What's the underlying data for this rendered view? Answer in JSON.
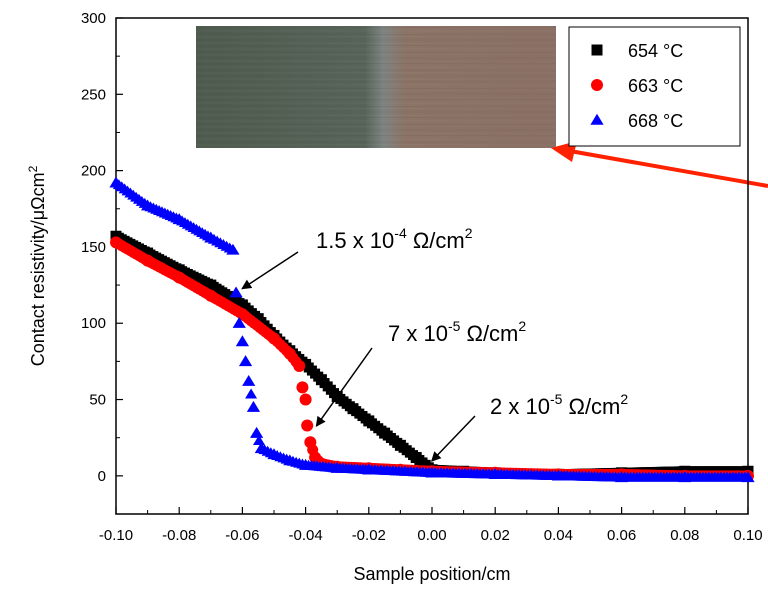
{
  "chart_data": {
    "type": "scatter",
    "title": "",
    "xlabel": "Sample position/cm",
    "ylabel": "Contact resistivity/μΩcm",
    "ylabel_sup": "2",
    "xlim": [
      -0.1,
      0.1
    ],
    "ylim": [
      -25,
      300
    ],
    "x_ticks": [
      -0.1,
      -0.08,
      -0.06,
      -0.04,
      -0.02,
      0.0,
      0.02,
      0.04,
      0.06,
      0.08,
      0.1
    ],
    "x_tick_labels": [
      "-0.10",
      "-0.08",
      "-0.06",
      "-0.04",
      "-0.02",
      "0.00",
      "0.02",
      "0.04",
      "0.06",
      "0.08",
      "0.10"
    ],
    "y_ticks": [
      0,
      50,
      100,
      150,
      200,
      250,
      300
    ],
    "y_tick_labels": [
      "0",
      "50",
      "100",
      "150",
      "200",
      "250",
      "300"
    ],
    "grid": false,
    "legend_position": "top-right",
    "series": [
      {
        "name": "654 °C",
        "marker": "square",
        "color": "#000000",
        "points": [
          [
            -0.1,
            157
          ],
          [
            -0.09,
            146
          ],
          [
            -0.08,
            135
          ],
          [
            -0.07,
            125
          ],
          [
            -0.06,
            112
          ],
          [
            -0.055,
            103
          ],
          [
            -0.05,
            92
          ],
          [
            -0.045,
            82
          ],
          [
            -0.04,
            73
          ],
          [
            -0.035,
            63
          ],
          [
            -0.03,
            52
          ],
          [
            -0.025,
            44
          ],
          [
            -0.02,
            36
          ],
          [
            -0.015,
            28
          ],
          [
            -0.01,
            20
          ],
          [
            -0.005,
            12
          ],
          [
            0.0,
            4
          ],
          [
            0.01,
            3
          ],
          [
            0.02,
            2
          ],
          [
            0.04,
            1
          ],
          [
            0.06,
            2
          ],
          [
            0.08,
            3
          ],
          [
            0.1,
            3
          ]
        ]
      },
      {
        "name": "663 °C",
        "marker": "circle",
        "color": "#ff0000",
        "points": [
          [
            -0.1,
            153
          ],
          [
            -0.09,
            141
          ],
          [
            -0.08,
            130
          ],
          [
            -0.07,
            118
          ],
          [
            -0.06,
            106
          ],
          [
            -0.05,
            90
          ],
          [
            -0.045,
            80
          ],
          [
            -0.042,
            72
          ],
          [
            -0.041,
            58
          ],
          [
            -0.04,
            50
          ],
          [
            -0.0395,
            33
          ],
          [
            -0.0385,
            22
          ],
          [
            -0.037,
            12
          ],
          [
            -0.035,
            8
          ],
          [
            -0.03,
            6
          ],
          [
            -0.02,
            5
          ],
          [
            -0.01,
            4
          ],
          [
            0.0,
            3
          ],
          [
            0.02,
            2
          ],
          [
            0.04,
            1
          ],
          [
            0.06,
            1
          ],
          [
            0.08,
            0
          ],
          [
            0.1,
            0
          ]
        ]
      },
      {
        "name": "668 °C",
        "marker": "triangle",
        "color": "#0000ff",
        "points": [
          [
            -0.1,
            192
          ],
          [
            -0.09,
            177
          ],
          [
            -0.08,
            168
          ],
          [
            -0.07,
            156
          ],
          [
            -0.063,
            148
          ],
          [
            -0.062,
            120
          ],
          [
            -0.061,
            100
          ],
          [
            -0.06,
            88
          ],
          [
            -0.059,
            75
          ],
          [
            -0.058,
            62
          ],
          [
            -0.0565,
            45
          ],
          [
            -0.0555,
            28
          ],
          [
            -0.054,
            18
          ],
          [
            -0.05,
            14
          ],
          [
            -0.045,
            10
          ],
          [
            -0.04,
            7
          ],
          [
            -0.03,
            5
          ],
          [
            -0.02,
            4
          ],
          [
            0.0,
            2
          ],
          [
            0.02,
            1
          ],
          [
            0.04,
            0
          ],
          [
            0.06,
            -1
          ],
          [
            0.08,
            -1
          ],
          [
            0.1,
            -1
          ]
        ]
      }
    ],
    "annotations": [
      {
        "label": "1.5 x 10",
        "sup": "-4",
        "unit": " Ω/cm",
        "unit_sup": "2",
        "point": [
          -0.062,
          120
        ]
      },
      {
        "label": "7 x 10",
        "sup": "-5",
        "unit": " Ω/cm",
        "unit_sup": "2",
        "point": [
          -0.0385,
          30
        ]
      },
      {
        "label": "2 x 10",
        "sup": "-5",
        "unit": " Ω/cm",
        "unit_sup": "2",
        "point": [
          -0.002,
          7
        ]
      }
    ]
  },
  "inset_photo": {
    "left_color": "#4f5a4e",
    "right_color": "#8e7467",
    "arrow_color": "#ff2200"
  }
}
